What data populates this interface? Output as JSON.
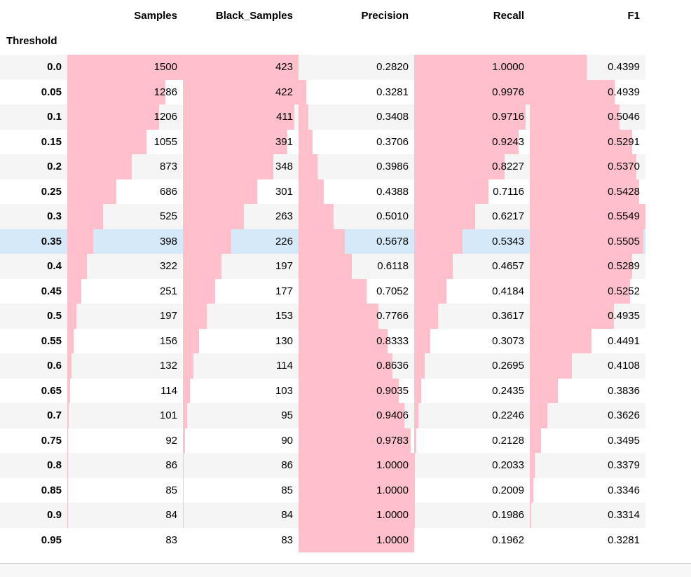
{
  "table": {
    "index_name": "Threshold",
    "columns": [
      "Samples",
      "Black_Samples",
      "Precision",
      "Recall",
      "F1"
    ],
    "highlight_row": "0.35",
    "bar_color": "#ffc0cb",
    "highlight_color": "#d6e9f8",
    "rows": [
      {
        "threshold": "0.0",
        "samples": "1500",
        "black": "423",
        "precision": "0.2820",
        "recall": "1.0000",
        "f1": "0.4399"
      },
      {
        "threshold": "0.05",
        "samples": "1286",
        "black": "422",
        "precision": "0.3281",
        "recall": "0.9976",
        "f1": "0.4939"
      },
      {
        "threshold": "0.1",
        "samples": "1206",
        "black": "411",
        "precision": "0.3408",
        "recall": "0.9716",
        "f1": "0.5046"
      },
      {
        "threshold": "0.15",
        "samples": "1055",
        "black": "391",
        "precision": "0.3706",
        "recall": "0.9243",
        "f1": "0.5291"
      },
      {
        "threshold": "0.2",
        "samples": "873",
        "black": "348",
        "precision": "0.3986",
        "recall": "0.8227",
        "f1": "0.5370"
      },
      {
        "threshold": "0.25",
        "samples": "686",
        "black": "301",
        "precision": "0.4388",
        "recall": "0.7116",
        "f1": "0.5428"
      },
      {
        "threshold": "0.3",
        "samples": "525",
        "black": "263",
        "precision": "0.5010",
        "recall": "0.6217",
        "f1": "0.5549"
      },
      {
        "threshold": "0.35",
        "samples": "398",
        "black": "226",
        "precision": "0.5678",
        "recall": "0.5343",
        "f1": "0.5505"
      },
      {
        "threshold": "0.4",
        "samples": "322",
        "black": "197",
        "precision": "0.6118",
        "recall": "0.4657",
        "f1": "0.5289"
      },
      {
        "threshold": "0.45",
        "samples": "251",
        "black": "177",
        "precision": "0.7052",
        "recall": "0.4184",
        "f1": "0.5252"
      },
      {
        "threshold": "0.5",
        "samples": "197",
        "black": "153",
        "precision": "0.7766",
        "recall": "0.3617",
        "f1": "0.4935"
      },
      {
        "threshold": "0.55",
        "samples": "156",
        "black": "130",
        "precision": "0.8333",
        "recall": "0.3073",
        "f1": "0.4491"
      },
      {
        "threshold": "0.6",
        "samples": "132",
        "black": "114",
        "precision": "0.8636",
        "recall": "0.2695",
        "f1": "0.4108"
      },
      {
        "threshold": "0.65",
        "samples": "114",
        "black": "103",
        "precision": "0.9035",
        "recall": "0.2435",
        "f1": "0.3836"
      },
      {
        "threshold": "0.7",
        "samples": "101",
        "black": "95",
        "precision": "0.9406",
        "recall": "0.2246",
        "f1": "0.3626"
      },
      {
        "threshold": "0.75",
        "samples": "92",
        "black": "90",
        "precision": "0.9783",
        "recall": "0.2128",
        "f1": "0.3495"
      },
      {
        "threshold": "0.8",
        "samples": "86",
        "black": "86",
        "precision": "1.0000",
        "recall": "0.2033",
        "f1": "0.3379"
      },
      {
        "threshold": "0.85",
        "samples": "85",
        "black": "85",
        "precision": "1.0000",
        "recall": "0.2009",
        "f1": "0.3346"
      },
      {
        "threshold": "0.9",
        "samples": "84",
        "black": "84",
        "precision": "1.0000",
        "recall": "0.1986",
        "f1": "0.3314"
      },
      {
        "threshold": "0.95",
        "samples": "83",
        "black": "83",
        "precision": "1.0000",
        "recall": "0.1962",
        "f1": "0.3281"
      }
    ]
  }
}
